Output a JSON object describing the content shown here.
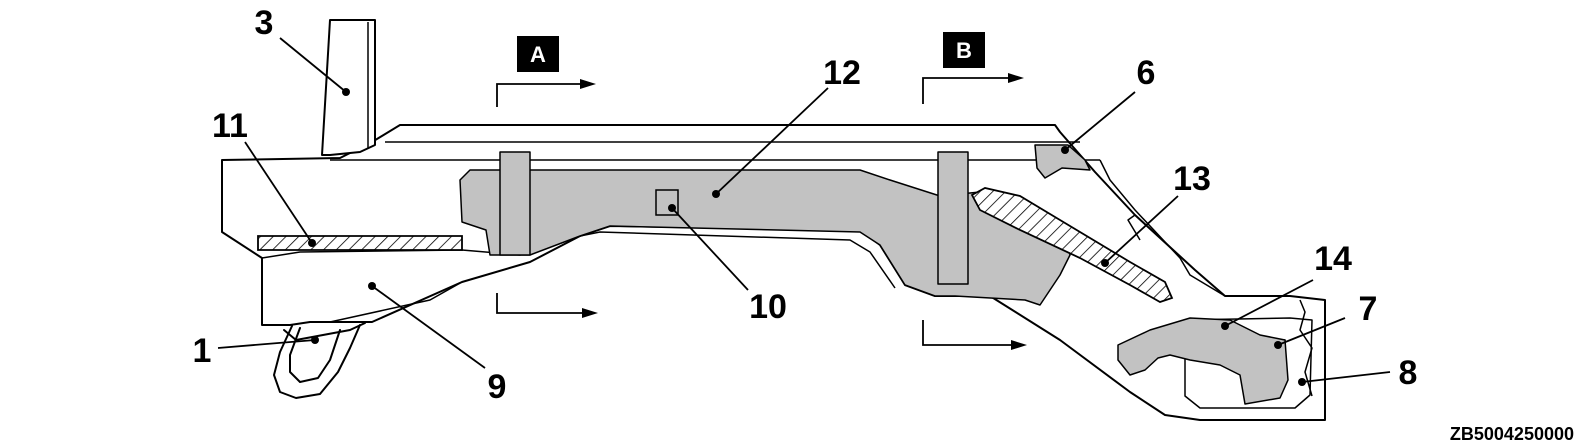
{
  "diagram": {
    "reference_code": "ZB5004250000",
    "sections": [
      {
        "id": "A",
        "label": "A"
      },
      {
        "id": "B",
        "label": "B"
      }
    ],
    "callouts": [
      "1",
      "3",
      "6",
      "7",
      "8",
      "9",
      "10",
      "11",
      "12",
      "13",
      "14"
    ]
  }
}
